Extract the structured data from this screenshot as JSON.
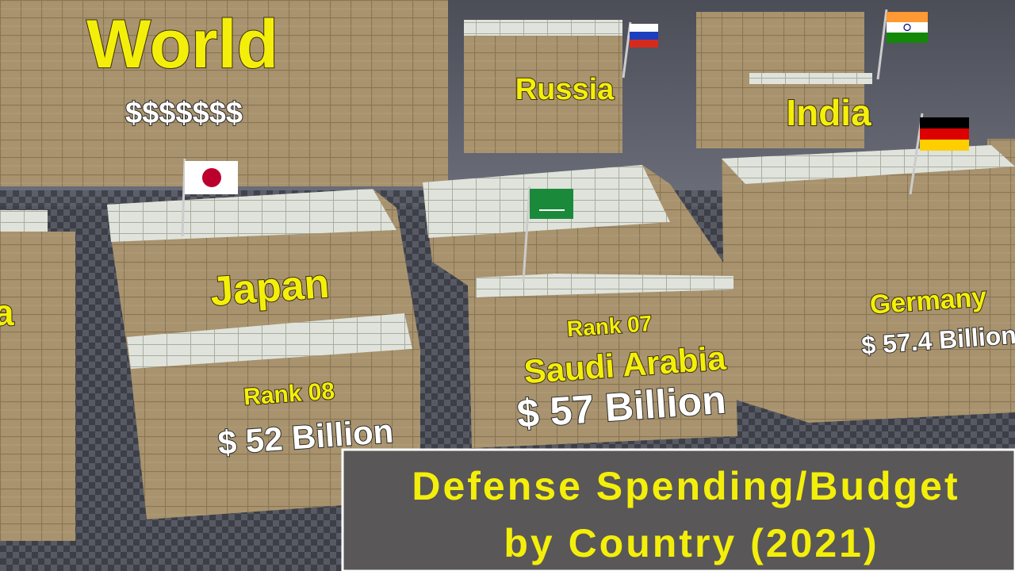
{
  "scene": {
    "world": {
      "label": "World",
      "amount": "$$$$$$$"
    },
    "partial_label": "a",
    "russia": {
      "label": "Russia"
    },
    "india": {
      "label": "India"
    },
    "japan": {
      "label": "Japan",
      "rank": "Rank 08",
      "amount": "$ 52 Billion"
    },
    "saudi_arabia": {
      "label": "Saudi Arabia",
      "rank": "Rank 07",
      "amount": "$ 57 Billion"
    },
    "germany": {
      "label": "Germany",
      "amount": "$ 57.4 Billion"
    },
    "title": {
      "line1": "Defense Spending/Budget",
      "line2": "by Country (2021)"
    }
  }
}
